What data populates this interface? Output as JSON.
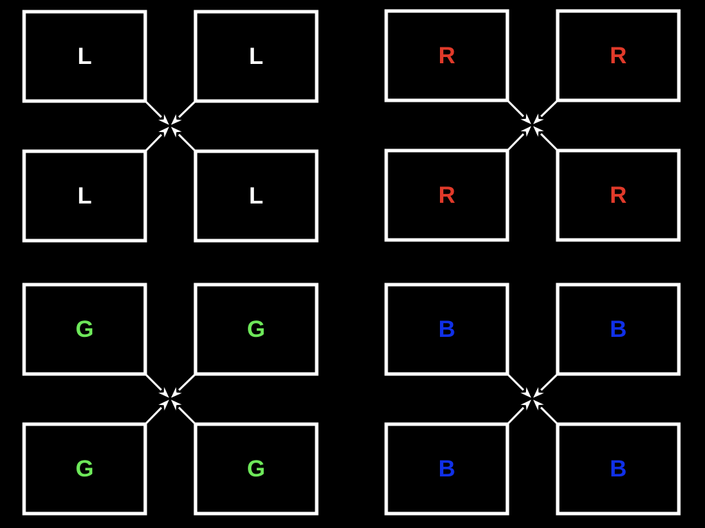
{
  "colors": {
    "background": "#000000",
    "box_border": "#ffffff",
    "arrow": "#ffffff"
  },
  "groups": [
    {
      "id": "luminance",
      "label_color": "#ffffff",
      "boxes": [
        {
          "label": "L"
        },
        {
          "label": "L"
        },
        {
          "label": "L"
        },
        {
          "label": "L"
        }
      ]
    },
    {
      "id": "red",
      "label_color": "#e03a2a",
      "boxes": [
        {
          "label": "R"
        },
        {
          "label": "R"
        },
        {
          "label": "R"
        },
        {
          "label": "R"
        }
      ]
    },
    {
      "id": "green",
      "label_color": "#6ee85a",
      "boxes": [
        {
          "label": "G"
        },
        {
          "label": "G"
        },
        {
          "label": "G"
        },
        {
          "label": "G"
        }
      ]
    },
    {
      "id": "blue",
      "label_color": "#1030e8",
      "boxes": [
        {
          "label": "B"
        },
        {
          "label": "B"
        },
        {
          "label": "B"
        },
        {
          "label": "B"
        }
      ]
    }
  ]
}
